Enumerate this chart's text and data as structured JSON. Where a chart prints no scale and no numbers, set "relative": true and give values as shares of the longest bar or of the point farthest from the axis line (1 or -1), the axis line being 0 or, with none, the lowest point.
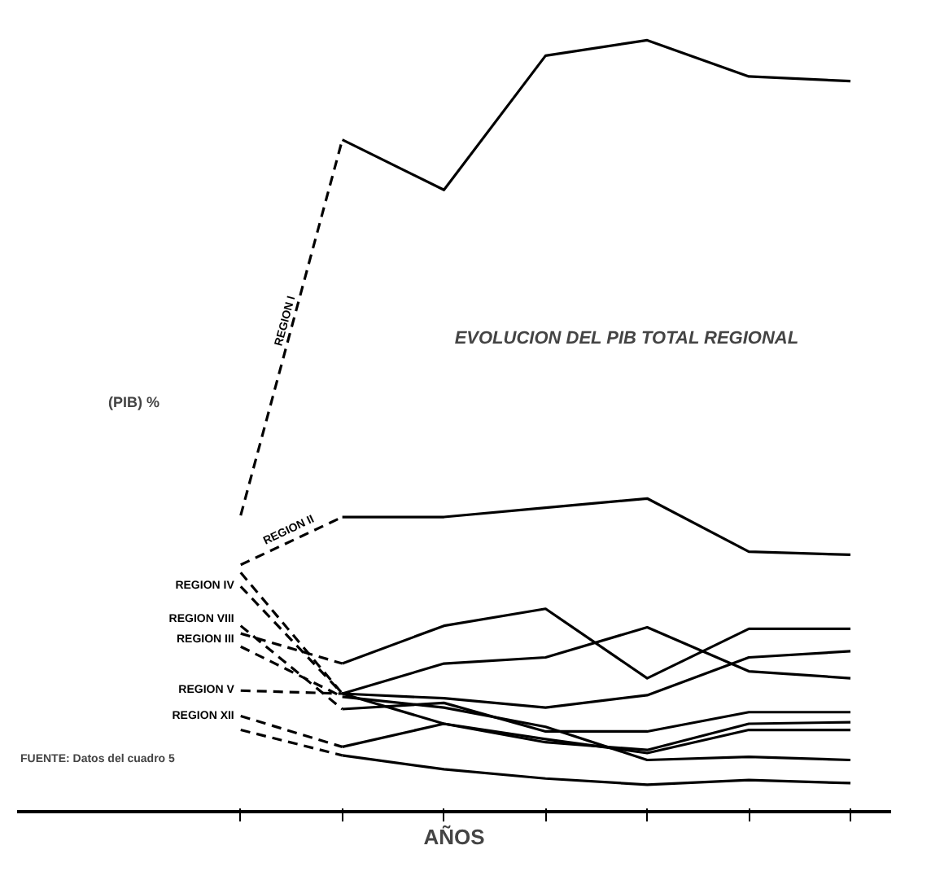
{
  "chart_data": {
    "type": "line",
    "title": "EVOLUCION DEL PIB TOTAL REGIONAL",
    "xlabel": "AÑOS",
    "ylabel": "(PIB) %",
    "relative": true,
    "marker": "none",
    "grid": false,
    "legend": false,
    "annotations": [
      "FUENTE: Datos del cuadro 5"
    ],
    "categories": [
      null,
      null,
      null,
      null,
      null,
      null,
      null
    ],
    "series": [
      {
        "name": "REGION I",
        "color": "#000000",
        "line_style": "dashed",
        "values": [
          0.384,
          0.871,
          null,
          null,
          null,
          null,
          null
        ]
      },
      {
        "color": "#000000",
        "line_style": "solid",
        "values": [
          null,
          0.871,
          0.806,
          0.98,
          1.0,
          0.953,
          0.947
        ]
      },
      {
        "name": "REGION II",
        "color": "#000000",
        "line_style": "dashed",
        "values": [
          0.32,
          0.382,
          null,
          null,
          null,
          null,
          null
        ]
      },
      {
        "color": "#000000",
        "line_style": "solid",
        "values": [
          null,
          0.382,
          0.382,
          0.394,
          0.406,
          0.337,
          0.333
        ]
      },
      {
        "name": "REGION III",
        "color": "#000000",
        "line_style": "dashed",
        "values": [
          0.231,
          0.192,
          null,
          null,
          null,
          null,
          null
        ]
      },
      {
        "color": "#000000",
        "line_style": "solid",
        "values": [
          null,
          0.192,
          0.241,
          0.263,
          0.173,
          0.237,
          0.237
        ]
      },
      {
        "color": "#000000",
        "line_style": "dashed",
        "values": [
          0.31,
          0.153,
          null,
          null,
          null,
          null,
          null
        ]
      },
      {
        "color": "#000000",
        "line_style": "solid",
        "values": [
          null,
          0.153,
          0.192,
          0.2,
          0.239,
          0.182,
          0.173
        ]
      },
      {
        "name": "REGION V",
        "color": "#000000",
        "line_style": "dashed",
        "values": [
          0.157,
          0.153,
          null,
          null,
          null,
          null,
          null
        ]
      },
      {
        "color": "#000000",
        "line_style": "solid",
        "values": [
          null,
          0.153,
          0.147,
          0.135,
          0.151,
          0.2,
          0.208
        ]
      },
      {
        "name": "REGION IV",
        "color": "#000000",
        "line_style": "dashed",
        "values": [
          0.292,
          0.153,
          null,
          null,
          null,
          null,
          null
        ]
      },
      {
        "color": "#000000",
        "line_style": "solid",
        "values": [
          null,
          0.153,
          0.114,
          0.09,
          0.08,
          0.114,
          0.116
        ]
      },
      {
        "name": "REGION VIII",
        "color": "#000000",
        "line_style": "dashed",
        "values": [
          0.241,
          0.133,
          null,
          null,
          null,
          null,
          null
        ]
      },
      {
        "color": "#000000",
        "line_style": "solid",
        "values": [
          null,
          0.133,
          0.141,
          0.104,
          0.104,
          0.129,
          0.129
        ]
      },
      {
        "color": "#000000",
        "line_style": "dashed",
        "values": [
          0.214,
          0.149,
          null,
          null,
          null,
          null,
          null
        ]
      },
      {
        "color": "#000000",
        "line_style": "solid",
        "values": [
          null,
          0.149,
          0.135,
          0.11,
          0.067,
          0.071,
          0.067
        ]
      },
      {
        "name": "REGION XII",
        "color": "#000000",
        "line_style": "dashed",
        "values": [
          0.124,
          0.084,
          null,
          null,
          null,
          null,
          null
        ]
      },
      {
        "color": "#000000",
        "line_style": "solid",
        "values": [
          null,
          0.084,
          0.114,
          0.094,
          0.076,
          0.106,
          0.106
        ]
      },
      {
        "color": "#000000",
        "line_style": "dashed",
        "values": [
          0.106,
          0.073,
          null,
          null,
          null,
          null,
          null
        ]
      },
      {
        "color": "#000000",
        "line_style": "solid",
        "values": [
          null,
          0.073,
          0.055,
          0.043,
          0.035,
          0.041,
          0.037
        ]
      }
    ]
  }
}
